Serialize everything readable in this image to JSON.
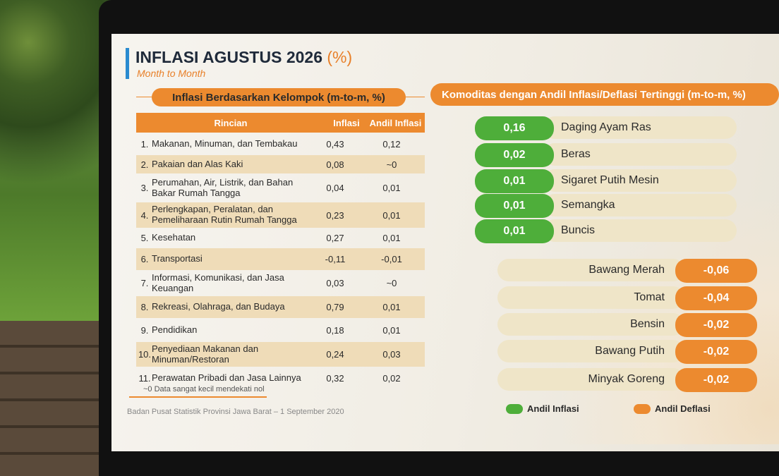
{
  "header": {
    "title": "INFLASI AGUSTUS 2026",
    "title_unit": "(%)",
    "subtitle": "Month to Month"
  },
  "left_section": {
    "title": "Inflasi Berdasarkan Kelompok (m-to-m, %)"
  },
  "table": {
    "columns": [
      "Rincian",
      "Inflasi",
      "Andil Inflasi"
    ],
    "rows": [
      [
        "1.",
        "Makanan, Minuman, dan Tembakau",
        "0,43",
        "0,12"
      ],
      [
        "2.",
        "Pakaian dan Alas Kaki",
        "0,08",
        "~0"
      ],
      [
        "3.",
        "Perumahan, Air, Listrik, dan Bahan Bakar Rumah Tangga",
        "0,04",
        "0,01"
      ],
      [
        "4.",
        "Perlengkapan, Peralatan, dan Pemeliharaan Rutin Rumah Tangga",
        "0,23",
        "0,01"
      ],
      [
        "5.",
        "Kesehatan",
        "0,27",
        "0,01"
      ],
      [
        "6.",
        "Transportasi",
        "-0,11",
        "-0,01"
      ],
      [
        "7.",
        "Informasi, Komunikasi, dan Jasa Keuangan",
        "0,03",
        "~0"
      ],
      [
        "8.",
        "Rekreasi, Olahraga, dan Budaya",
        "0,79",
        "0,01"
      ],
      [
        "9.",
        "Pendidikan",
        "0,18",
        "0,01"
      ],
      [
        "10.",
        "Penyediaan Makanan dan Minuman/Restoran",
        "0,24",
        "0,03"
      ],
      [
        "11.",
        "Perawatan Pribadi dan Jasa Lainnya",
        "0,32",
        "0,02"
      ]
    ]
  },
  "footnote": "~0 Data sangat kecil mendekati nol",
  "source": "Badan Pusat Statistik Provinsi Jawa Barat – 1 September 2020",
  "right_section": {
    "title": "Komoditas dengan Andil Inflasi/Deflasi Tertinggi (m-to-m, %)",
    "inflation": [
      {
        "value": "0,16",
        "label": "Daging Ayam Ras"
      },
      {
        "value": "0,02",
        "label": "Beras"
      },
      {
        "value": "0,01",
        "label": "Sigaret Putih Mesin"
      },
      {
        "value": "0,01",
        "label": "Semangka"
      },
      {
        "value": "0,01",
        "label": "Buncis"
      }
    ],
    "deflation": [
      {
        "value": "-0,06",
        "label": "Bawang Merah"
      },
      {
        "value": "-0,04",
        "label": "Tomat"
      },
      {
        "value": "-0,02",
        "label": "Bensin"
      },
      {
        "value": "-0,02",
        "label": "Bawang Putih"
      },
      {
        "value": "-0,02",
        "label": "Minyak Goreng"
      }
    ],
    "legend": [
      "Andil Inflasi",
      "Andil Deflasi"
    ]
  }
}
